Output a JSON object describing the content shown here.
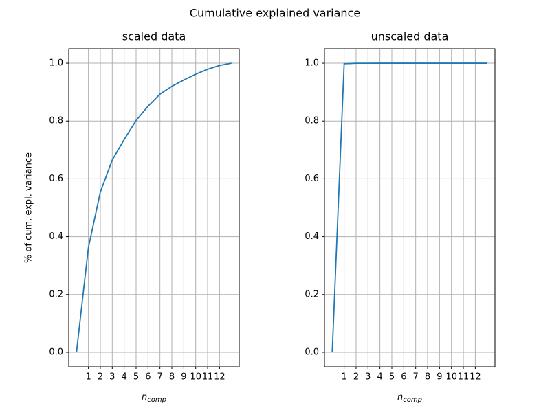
{
  "suptitle": "Cumulative explained variance",
  "chart_data": [
    {
      "type": "line",
      "title": "scaled data",
      "ylabel": "% of cum. expl. variance",
      "xlabel": "n",
      "xlabel_sub": "comp",
      "x": [
        0,
        1,
        2,
        3,
        4,
        5,
        6,
        7,
        8,
        9,
        10,
        11,
        12,
        13
      ],
      "values": [
        0,
        0.362,
        0.554,
        0.665,
        0.736,
        0.802,
        0.851,
        0.893,
        0.92,
        0.942,
        0.962,
        0.979,
        0.992,
        1.0
      ],
      "color": "#1f77b4",
      "xlim": [
        -0.65,
        13.65
      ],
      "ylim": [
        -0.05,
        1.05
      ],
      "xticks": [
        1,
        2,
        3,
        4,
        5,
        6,
        7,
        8,
        9,
        10,
        11,
        12
      ],
      "yticks": [
        {
          "value": 0,
          "label": "0.0"
        },
        0.2,
        0.4,
        0.6,
        0.8,
        {
          "value": 1,
          "label": "1.0"
        }
      ],
      "grid": true
    },
    {
      "type": "line",
      "title": "unscaled data",
      "xlabel": "n",
      "xlabel_sub": "comp",
      "x": [
        0,
        1,
        2,
        3,
        4,
        5,
        6,
        7,
        8,
        9,
        10,
        11,
        12,
        13
      ],
      "values": [
        0,
        0.998,
        0.9998,
        0.9999,
        1.0,
        1.0,
        1.0,
        1.0,
        1.0,
        1.0,
        1.0,
        1.0,
        1.0,
        1.0
      ],
      "color": "#1f77b4",
      "xlim": [
        -0.65,
        13.65
      ],
      "ylim": [
        -0.05,
        1.05
      ],
      "xticks": [
        1,
        2,
        3,
        4,
        5,
        6,
        7,
        8,
        9,
        10,
        11,
        12
      ],
      "yticks": [
        {
          "value": 0,
          "label": "0.0"
        },
        0.2,
        0.4,
        0.6,
        0.8,
        {
          "value": 1,
          "label": "1.0"
        }
      ],
      "grid": true
    }
  ]
}
